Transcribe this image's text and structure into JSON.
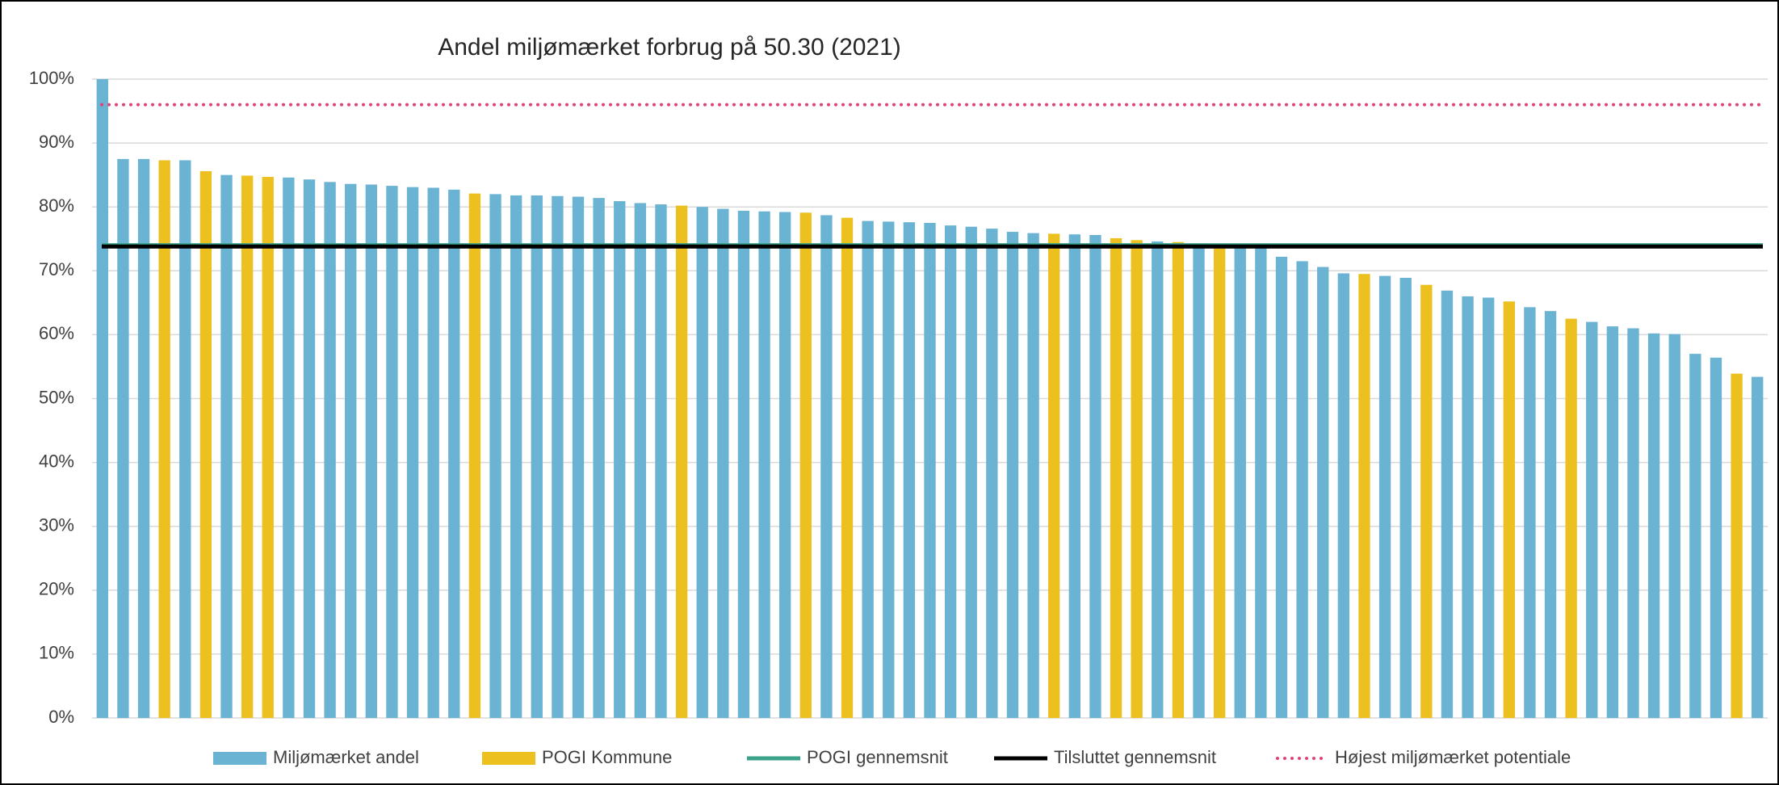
{
  "chart_data": {
    "type": "bar",
    "title": "Andel miljømærket forbrug på 50.30 (2021)",
    "categories": [
      null,
      null,
      null,
      null,
      null,
      null,
      null,
      null,
      null,
      null,
      null,
      null,
      null,
      null,
      null,
      null,
      null,
      null,
      null,
      null,
      null,
      null,
      null,
      null,
      null,
      null,
      null,
      null,
      null,
      null,
      null,
      null,
      null,
      null,
      null,
      null,
      null,
      null,
      null,
      null,
      null,
      null,
      null,
      null,
      null,
      null,
      null,
      null,
      null,
      null,
      null,
      null,
      null,
      null,
      null,
      null,
      null,
      null,
      null,
      null,
      null,
      null,
      null,
      null,
      null,
      null,
      null,
      null,
      null,
      null,
      null,
      null,
      null,
      null,
      null,
      null,
      null,
      null,
      null,
      null,
      null
    ],
    "series": [
      {
        "name": "Miljømærket andel",
        "color": "#6ab3d3",
        "values": [
          100,
          87.5,
          87.5,
          null,
          87.3,
          null,
          85,
          null,
          null,
          84.6,
          84.3,
          83.9,
          83.6,
          83.5,
          83.3,
          83.1,
          83,
          82.7,
          null,
          82,
          81.8,
          81.8,
          81.7,
          81.6,
          81.4,
          80.9,
          80.6,
          80.4,
          null,
          80,
          79.7,
          79.4,
          79.3,
          79.2,
          null,
          78.7,
          null,
          77.8,
          77.7,
          77.6,
          77.5,
          77.1,
          76.9,
          76.6,
          76.1,
          75.9,
          null,
          75.7,
          75.6,
          null,
          null,
          74.6,
          null,
          74.3,
          null,
          73.9,
          73.6,
          72.2,
          71.5,
          70.6,
          69.6,
          null,
          69.2,
          68.9,
          null,
          66.9,
          66,
          65.8,
          null,
          64.3,
          63.7,
          null,
          62,
          61.3,
          61,
          60.2,
          60.1,
          57,
          56.4,
          null,
          53.4
        ]
      },
      {
        "name": "POGI Kommune",
        "color": "#ecc01f",
        "values": [
          null,
          null,
          null,
          87.3,
          null,
          85.6,
          null,
          84.9,
          84.7,
          null,
          null,
          null,
          null,
          null,
          null,
          null,
          null,
          null,
          82.1,
          null,
          null,
          null,
          null,
          null,
          null,
          null,
          null,
          null,
          80.2,
          null,
          null,
          null,
          null,
          null,
          79.1,
          null,
          78.3,
          null,
          null,
          null,
          null,
          null,
          null,
          null,
          null,
          null,
          75.8,
          null,
          null,
          75.1,
          74.8,
          null,
          74.5,
          null,
          73.5,
          null,
          null,
          null,
          null,
          null,
          null,
          69.5,
          null,
          null,
          67.8,
          null,
          null,
          null,
          65.2,
          null,
          null,
          62.5,
          null,
          null,
          null,
          null,
          null,
          null,
          null,
          53.9,
          null
        ]
      }
    ],
    "reference_lines": [
      {
        "name": "POGI gennemsnit",
        "color": "#3aa38a",
        "value": 74,
        "style": "solid"
      },
      {
        "name": "Tilsluttet gennemsnit",
        "color": "#000000",
        "value": 73.8,
        "style": "solid"
      },
      {
        "name": "Højest miljømærket potentiale",
        "color": "#e2407a",
        "value": 96,
        "style": "dotted"
      }
    ],
    "ylim": [
      0,
      100
    ],
    "yticks": [
      {
        "value": 0,
        "label": "0%"
      },
      {
        "value": 10,
        "label": "10%"
      },
      {
        "value": 20,
        "label": "20%"
      },
      {
        "value": 30,
        "label": "30%"
      },
      {
        "value": 40,
        "label": "40%"
      },
      {
        "value": 50,
        "label": "50%"
      },
      {
        "value": 60,
        "label": "60%"
      },
      {
        "value": 70,
        "label": "70%"
      },
      {
        "value": 80,
        "label": "80%"
      },
      {
        "value": 90,
        "label": "90%"
      },
      {
        "value": 100,
        "label": "100%"
      }
    ],
    "grid": true,
    "legend": "bottom"
  }
}
